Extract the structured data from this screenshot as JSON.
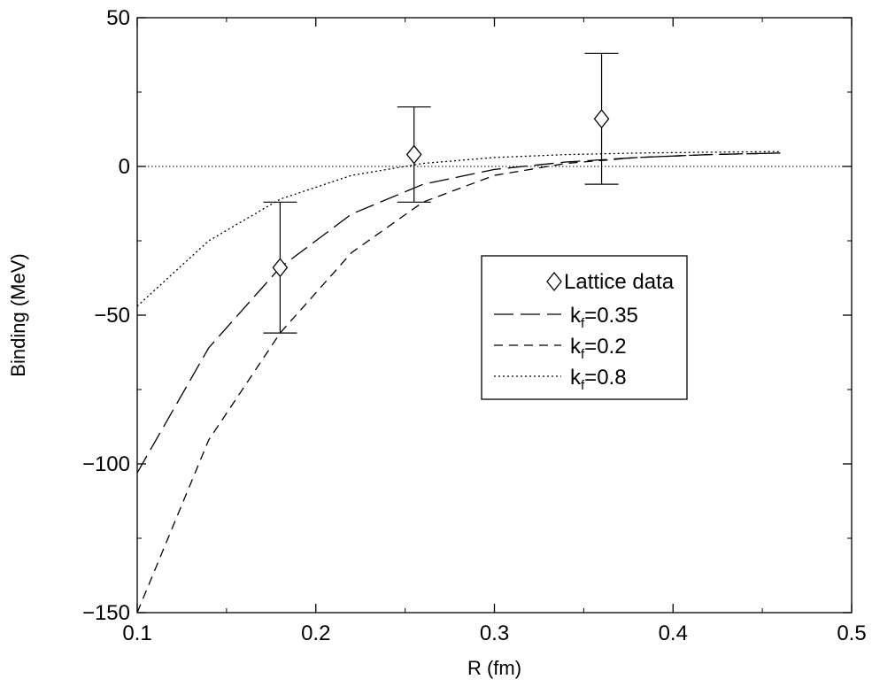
{
  "chart_data": {
    "type": "line",
    "title": "",
    "xlabel": "R (fm)",
    "ylabel": "Binding (MeV)",
    "xlim": [
      0.1,
      0.5
    ],
    "ylim": [
      -150,
      50
    ],
    "x_ticks": [
      0.1,
      0.2,
      0.3,
      0.4,
      0.5
    ],
    "x_tick_labels": [
      "0.1",
      "0.2",
      "0.3",
      "0.4",
      "0.5"
    ],
    "y_ticks": [
      -150,
      -100,
      -50,
      0,
      50
    ],
    "y_tick_labels": [
      "−150",
      "−100",
      "−50",
      "0",
      "50"
    ],
    "grid": false,
    "legend_position": "center-right",
    "reference_line": {
      "y": 0,
      "style": "dotted"
    },
    "points": {
      "name": "Lattice data",
      "marker": "diamond",
      "x": [
        0.18,
        0.255,
        0.36
      ],
      "y": [
        -34,
        4,
        16
      ],
      "err_low": [
        -56,
        -12,
        -6
      ],
      "err_high": [
        -12,
        20,
        38
      ]
    },
    "series": [
      {
        "name_main": "k",
        "name_sub": "f",
        "name_tail": "=0.35",
        "style": "long-dash",
        "x": [
          0.1,
          0.14,
          0.18,
          0.22,
          0.26,
          0.3,
          0.34,
          0.38,
          0.42,
          0.46
        ],
        "y": [
          -103,
          -61,
          -34,
          -16,
          -6,
          -1,
          1.5,
          3,
          4,
          4.5
        ]
      },
      {
        "name_main": "k",
        "name_sub": "f",
        "name_tail": "=0.2",
        "style": "short-dash",
        "x": [
          0.1,
          0.14,
          0.18,
          0.22,
          0.26,
          0.3,
          0.34,
          0.38,
          0.42,
          0.46
        ],
        "y": [
          -150,
          -92,
          -56,
          -29,
          -12,
          -3,
          1,
          3,
          4,
          4.5
        ]
      },
      {
        "name_main": "k",
        "name_sub": "f",
        "name_tail": "=0.8",
        "style": "dotted",
        "x": [
          0.1,
          0.14,
          0.18,
          0.22,
          0.26,
          0.3,
          0.34,
          0.38,
          0.42,
          0.46
        ],
        "y": [
          -47,
          -25,
          -11,
          -3,
          1,
          3,
          4,
          4.5,
          4.8,
          5
        ]
      }
    ]
  }
}
